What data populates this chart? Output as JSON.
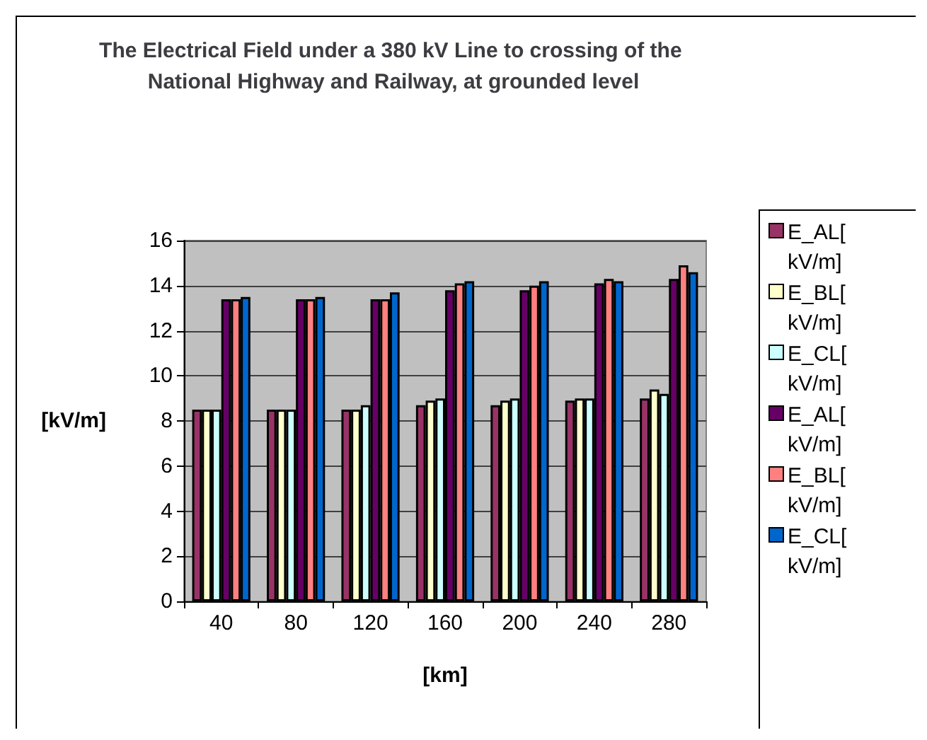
{
  "chart_data": {
    "type": "bar",
    "title": "The Electrical Field under a 380 kV Line to crossing of the National Highway and Railway, at grounded level",
    "xlabel": "[km]",
    "ylabel": "[kV/m]",
    "categories": [
      "40",
      "80",
      "120",
      "160",
      "200",
      "240",
      "280"
    ],
    "series": [
      {
        "name": "E_AL[ kV/m]",
        "color": "#993366",
        "values": [
          8.5,
          8.5,
          8.5,
          8.7,
          8.7,
          8.9,
          9.0
        ]
      },
      {
        "name": "E_BL[ kV/m]",
        "color": "#ffffcc",
        "values": [
          8.5,
          8.5,
          8.5,
          8.9,
          8.9,
          9.0,
          9.4
        ]
      },
      {
        "name": "E_CL[ kV/m]",
        "color": "#ccffff",
        "values": [
          8.5,
          8.5,
          8.7,
          9.0,
          9.0,
          9.0,
          9.2
        ]
      },
      {
        "name": "E_AL[ kV/m]",
        "color": "#660066",
        "values": [
          13.4,
          13.4,
          13.4,
          13.8,
          13.8,
          14.1,
          14.3
        ]
      },
      {
        "name": "E_BL[ kV/m]",
        "color": "#ff8080",
        "values": [
          13.4,
          13.4,
          13.4,
          14.1,
          14.0,
          14.3,
          14.9
        ]
      },
      {
        "name": "E_CL[ kV/m]",
        "color": "#0066cc",
        "values": [
          13.5,
          13.5,
          13.7,
          14.2,
          14.2,
          14.2,
          14.6
        ]
      }
    ],
    "ylim": [
      0,
      16
    ],
    "yticks": [
      0,
      2,
      4,
      6,
      8,
      10,
      12,
      14,
      16
    ],
    "grid": "y",
    "legend": "right"
  }
}
